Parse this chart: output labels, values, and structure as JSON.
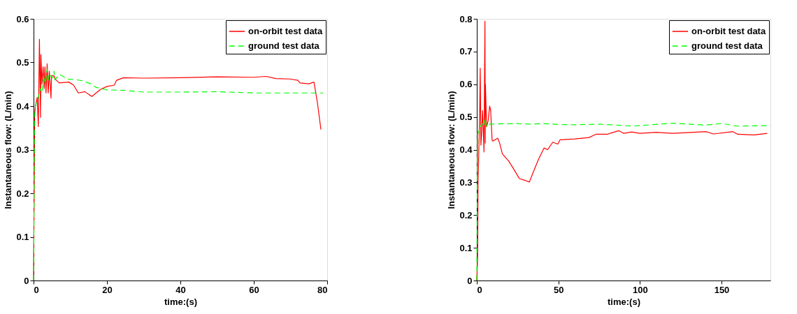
{
  "chart_data": [
    {
      "type": "line",
      "xlabel": "time:(s)",
      "ylabel": "Instantaneous flow: (L/min)",
      "xlim": [
        0,
        80
      ],
      "ylim": [
        0,
        0.6
      ],
      "xticks": [
        0,
        20,
        40,
        60,
        80
      ],
      "yticks": [
        0,
        0.1,
        0.2,
        0.3,
        0.4,
        0.5,
        0.6
      ],
      "grid": false,
      "legend": "top right",
      "series": [
        {
          "name": "on-orbit test data",
          "color": "#ff0000",
          "line_style": "solid",
          "x": [
            0,
            0.3,
            0.5,
            1,
            1.3,
            1.6,
            1.9,
            2.0,
            2.3,
            2.6,
            2.9,
            3.1,
            3.4,
            3.7,
            4.0,
            4.3,
            4.6,
            4.75,
            4.9,
            5.5,
            6,
            7,
            9.6,
            10.9,
            12.2,
            14,
            15,
            15.9,
            18.2,
            20,
            22,
            22.6,
            24.5,
            30,
            40,
            50,
            60,
            63.4,
            66,
            70,
            72,
            72.6,
            75,
            76.4,
            77.3,
            78.3
          ],
          "values": [
            0,
            0.38,
            0.4,
            0.42,
            0.353,
            0.553,
            0.374,
            0.518,
            0.45,
            0.49,
            0.44,
            0.49,
            0.43,
            0.497,
            0.43,
            0.48,
            0.44,
            0.418,
            0.47,
            0.47,
            0.461,
            0.453,
            0.455,
            0.448,
            0.43,
            0.433,
            0.427,
            0.422,
            0.438,
            0.445,
            0.448,
            0.459,
            0.465,
            0.464,
            0.465,
            0.467,
            0.466,
            0.468,
            0.463,
            0.462,
            0.459,
            0.453,
            0.451,
            0.455,
            0.41,
            0.346
          ]
        },
        {
          "name": "ground test data",
          "color": "#00ff00",
          "line_style": "dashed",
          "x": [
            0,
            0.1,
            0.3,
            0.5,
            1.3,
            1.8,
            2.3,
            2.8,
            3.2,
            3.7,
            4.1,
            4.6,
            5.3,
            5.6,
            5.8,
            7,
            7.7,
            9,
            12,
            13.7,
            16,
            16.9,
            20,
            25,
            30,
            40,
            50,
            60,
            70,
            78.9
          ],
          "values": [
            0,
            0.15,
            0.38,
            0.4,
            0.42,
            0.44,
            0.43,
            0.47,
            0.45,
            0.485,
            0.46,
            0.47,
            0.465,
            0.48,
            0.46,
            0.472,
            0.47,
            0.462,
            0.46,
            0.457,
            0.45,
            0.443,
            0.437,
            0.436,
            0.432,
            0.432,
            0.433,
            0.43,
            0.43,
            0.43
          ]
        }
      ]
    },
    {
      "type": "line",
      "xlabel": "time:(s)",
      "ylabel": "Instantaneous flow: (L/min)",
      "xlim": [
        0,
        180
      ],
      "ylim": [
        0,
        0.8
      ],
      "xticks": [
        0,
        50,
        100,
        150
      ],
      "yticks": [
        0,
        0.1,
        0.2,
        0.3,
        0.4,
        0.5,
        0.6,
        0.7,
        0.8
      ],
      "grid": false,
      "legend": "top right",
      "series": [
        {
          "name": "on-orbit test data",
          "color": "#ff0000",
          "line_style": "solid",
          "x": [
            0,
            0.5,
            0.8,
            1.8,
            2.1,
            2.5,
            3,
            3.5,
            4,
            4.4,
            5,
            5.2,
            5.3,
            6,
            7,
            7.9,
            8.5,
            9.4,
            9.9,
            12.8,
            14,
            15.7,
            19.4,
            21.6,
            23.8,
            26,
            29.7,
            32.2,
            34.9,
            37.8,
            41.2,
            43.4,
            46.6,
            49.6,
            51,
            60,
            68.7,
            73,
            80,
            83,
            87,
            90,
            95,
            100,
            110,
            120,
            140.7,
            145,
            157,
            160,
            170,
            178
          ],
          "values": [
            0,
            0.07,
            0.3,
            0.523,
            0.649,
            0.414,
            0.45,
            0.52,
            0.46,
            0.393,
            0.793,
            0.42,
            0.6,
            0.47,
            0.49,
            0.533,
            0.52,
            0.428,
            0.426,
            0.435,
            0.42,
            0.387,
            0.366,
            0.349,
            0.331,
            0.312,
            0.306,
            0.301,
            0.335,
            0.37,
            0.405,
            0.4,
            0.423,
            0.417,
            0.43,
            0.433,
            0.437,
            0.447,
            0.447,
            0.452,
            0.458,
            0.45,
            0.454,
            0.45,
            0.453,
            0.45,
            0.455,
            0.448,
            0.455,
            0.447,
            0.445,
            0.45
          ]
        },
        {
          "name": "ground test data",
          "color": "#00ff00",
          "line_style": "dashed",
          "x": [
            0,
            0.5,
            1.5,
            3,
            4,
            5,
            6,
            8,
            15,
            25,
            32,
            40,
            50,
            60,
            75,
            90,
            95,
            120,
            140,
            150,
            160,
            170,
            180
          ],
          "values": [
            0,
            0.45,
            0.46,
            0.48,
            0.47,
            0.495,
            0.47,
            0.478,
            0.479,
            0.48,
            0.478,
            0.48,
            0.477,
            0.476,
            0.478,
            0.474,
            0.472,
            0.481,
            0.475,
            0.48,
            0.472,
            0.473,
            0.474
          ]
        }
      ]
    }
  ]
}
